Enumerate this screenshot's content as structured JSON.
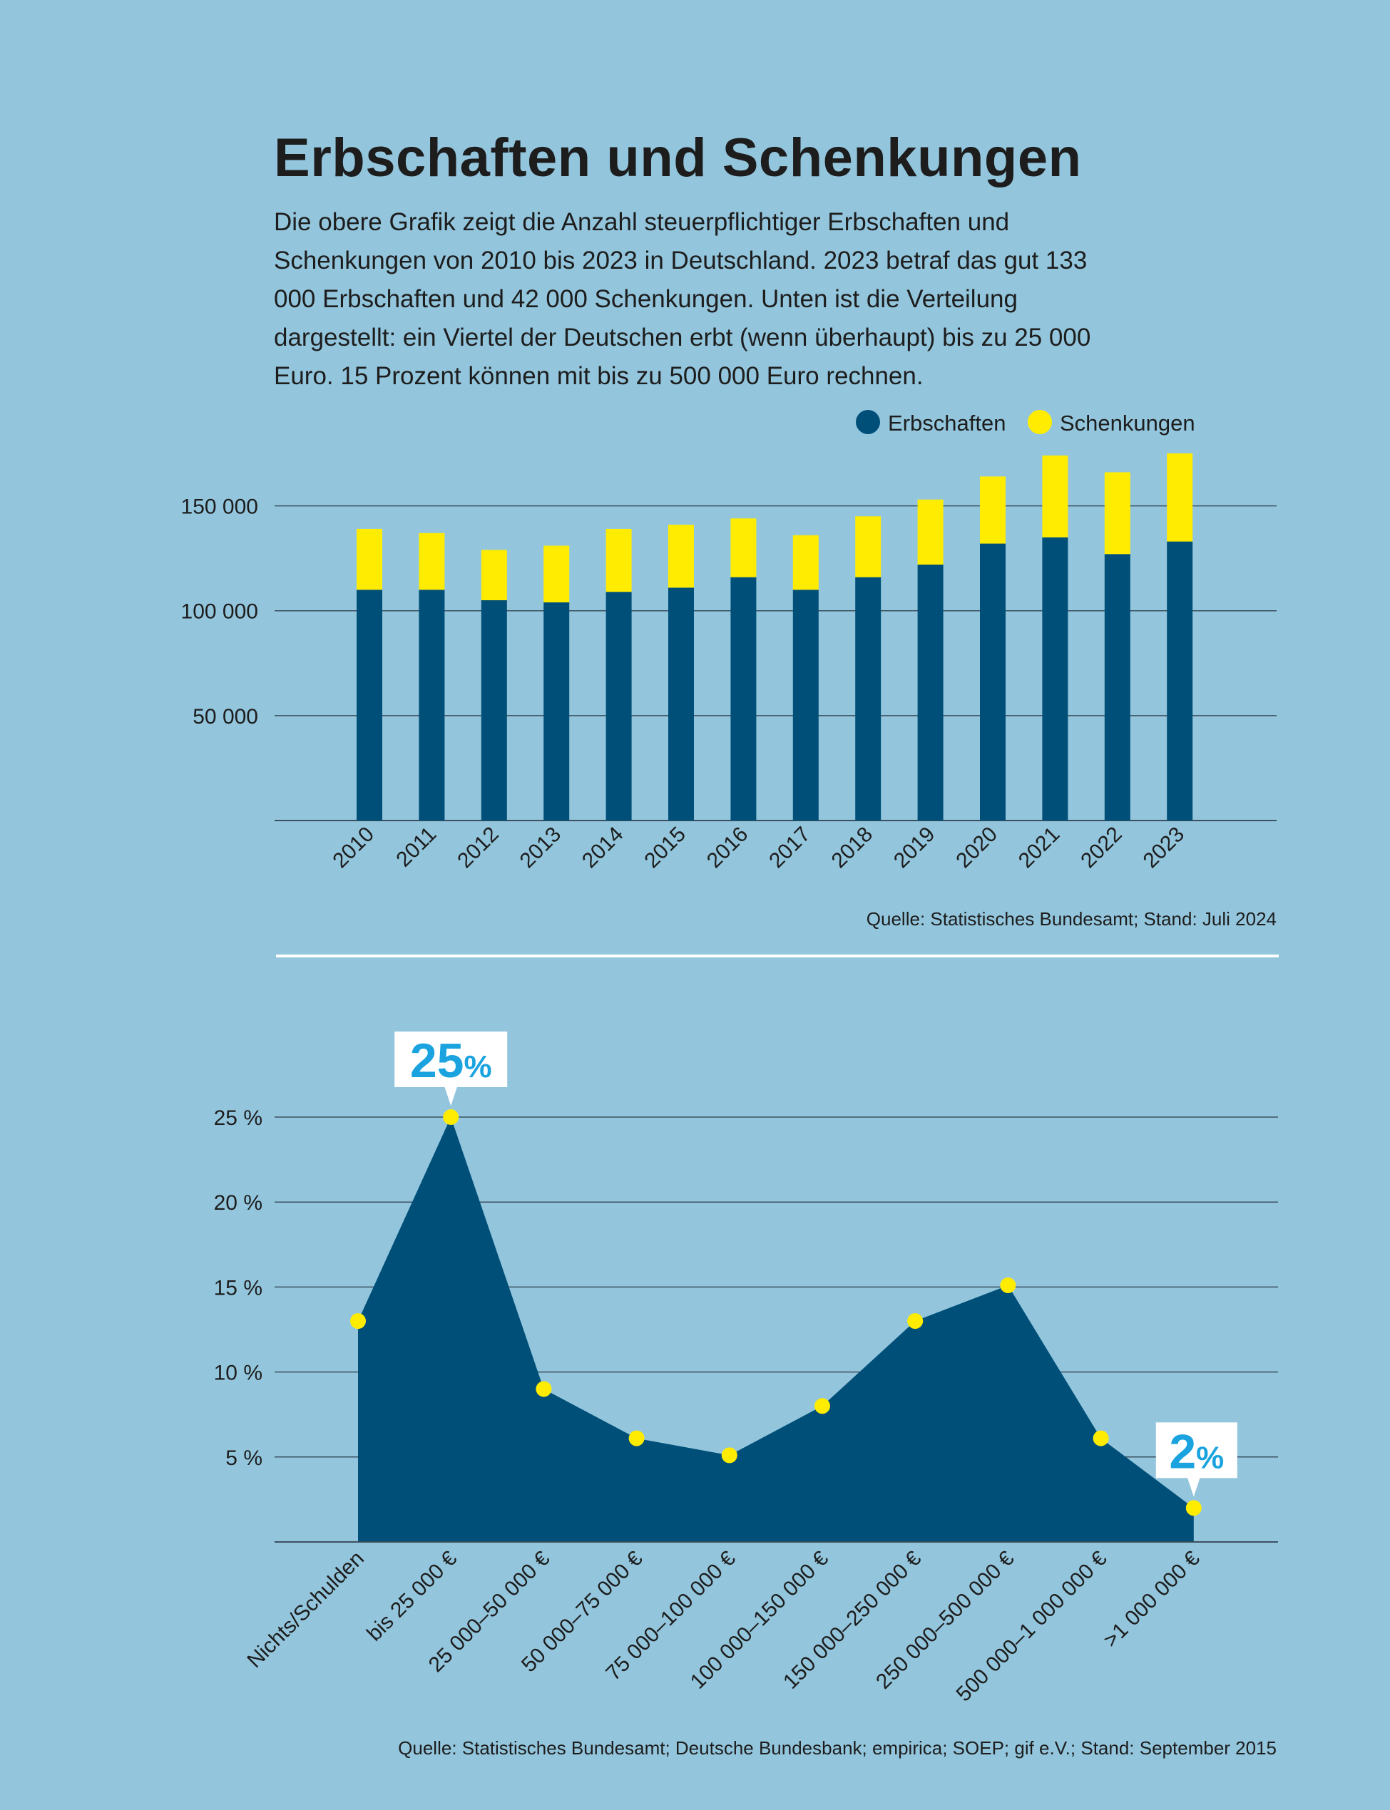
{
  "title": "Erbschaften und Schenkungen",
  "intro": "Die obere Grafik zeigt die Anzahl steuerpflichtiger Erbschaften und Schenkungen von 2010 bis 2023 in Deutschland. 2023 betraf das gut 133 000 Erbschaften und 42 000 Schenkungen. Unten ist die Verteilung dargestellt: ein Viertel der Deutschen erbt (wenn überhaupt) bis zu 25 000 Euro. 15 Prozent können mit bis zu 500 000 Euro rechnen.",
  "colors": {
    "background": "#93c6dd",
    "navy": "#004f78",
    "yellow": "#ffec00",
    "cyan": "#1aa3df"
  },
  "chart_data": [
    {
      "type": "bar",
      "stacked": true,
      "categories": [
        "2010",
        "2011",
        "2012",
        "2013",
        "2014",
        "2015",
        "2016",
        "2017",
        "2018",
        "2019",
        "2020",
        "2021",
        "2022",
        "2023"
      ],
      "series": [
        {
          "name": "Erbschaften",
          "color": "#004f78",
          "values": [
            110000,
            110000,
            105000,
            104000,
            109000,
            111000,
            116000,
            110000,
            116000,
            122000,
            132000,
            135000,
            127000,
            133000
          ]
        },
        {
          "name": "Schenkungen",
          "color": "#ffec00",
          "values": [
            29000,
            27000,
            24000,
            27000,
            30000,
            30000,
            28000,
            26000,
            29000,
            31000,
            32000,
            39000,
            39000,
            42000
          ]
        }
      ],
      "yticks": [
        {
          "value": 50000,
          "label": "50 000"
        },
        {
          "value": 100000,
          "label": "100 000"
        },
        {
          "value": 150000,
          "label": "150 000"
        }
      ],
      "ylim": [
        0,
        175000
      ],
      "legend": [
        "Erbschaften",
        "Schenkungen"
      ],
      "legend_position": "top-right",
      "source": "Quelle: Statistisches Bundesamt; Stand: Juli 2024",
      "grid": true
    },
    {
      "type": "area",
      "categories": [
        "Nichts/Schulden",
        "bis 25 000 €",
        "25 000–50 000 €",
        "50 000–75 000 €",
        "75 000–100 000 €",
        "100 000–150 000 €",
        "150 000–250 000 €",
        "250 000–500 000 €",
        "500 000–1 000 000 €",
        ">1 000 000 €"
      ],
      "values": [
        13,
        25,
        9,
        6.1,
        5.1,
        8,
        13,
        15.1,
        6.1,
        2
      ],
      "unit": "%",
      "yticks": [
        {
          "value": 5,
          "label": "5 %"
        },
        {
          "value": 10,
          "label": "10 %"
        },
        {
          "value": 15,
          "label": "15 %"
        },
        {
          "value": 20,
          "label": "20 %"
        },
        {
          "value": 25,
          "label": "25 %"
        }
      ],
      "ylim": [
        0,
        25
      ],
      "annotations": [
        {
          "index": 1,
          "number": "25",
          "suffix": "%"
        },
        {
          "index": 9,
          "number": "2",
          "suffix": "%"
        }
      ],
      "source": "Quelle: Statistisches Bundesamt; Deutsche Bundesbank; empirica; SOEP; gif e.V.; Stand: September 2015",
      "grid": true
    }
  ]
}
